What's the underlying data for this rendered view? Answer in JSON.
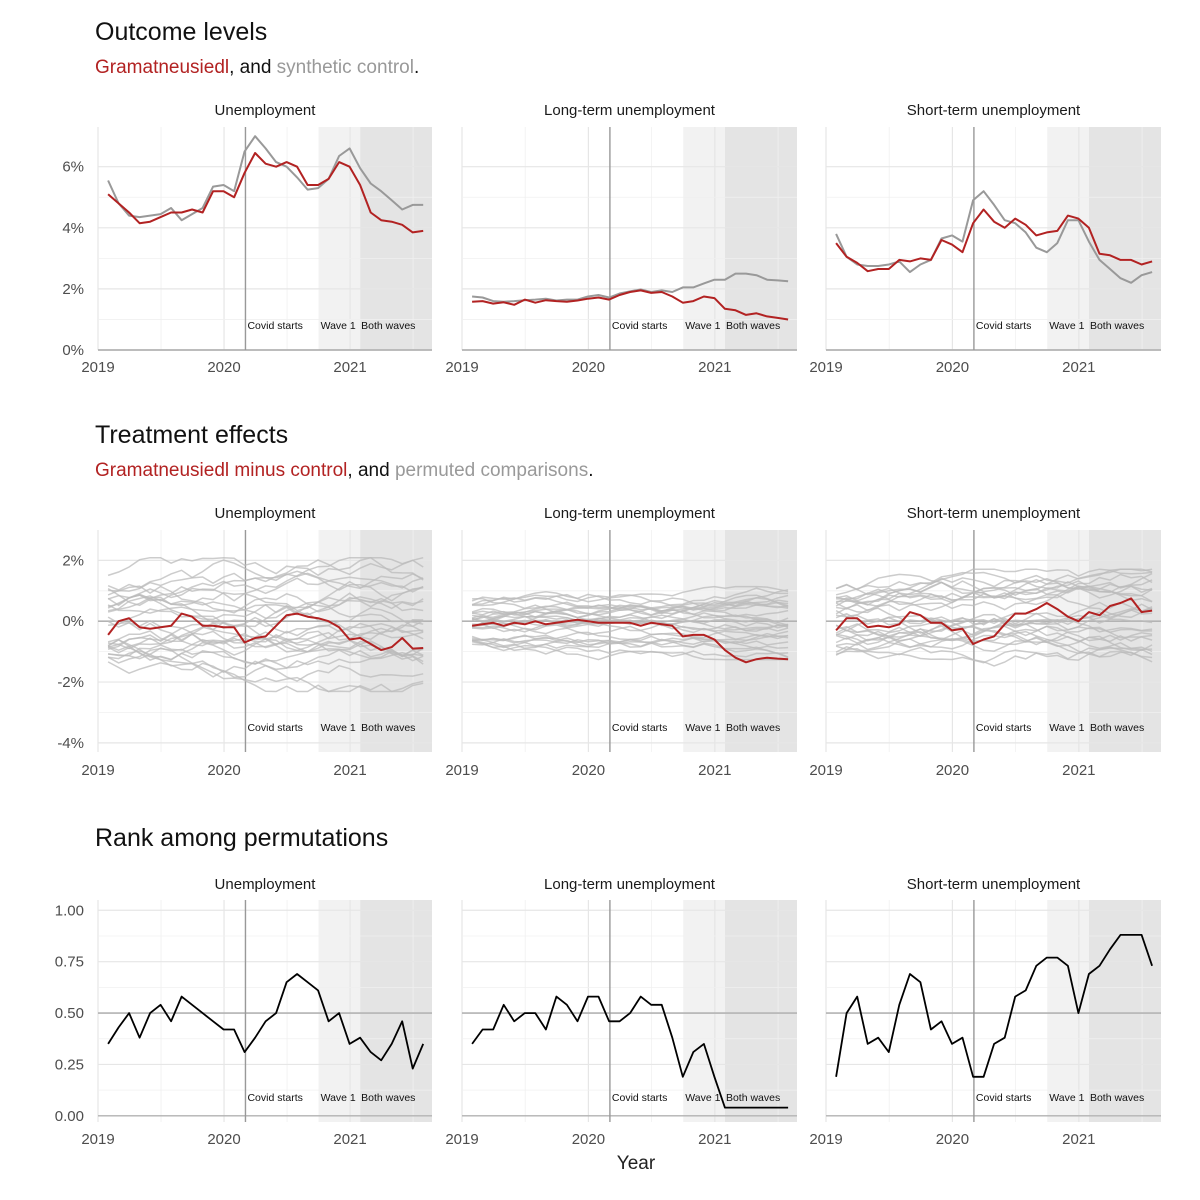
{
  "sections": [
    {
      "title": "Outcome levels",
      "subtitle": {
        "a": "Gramatneusiedl",
        "b": ", and ",
        "c": "synthetic control",
        "d": "."
      }
    },
    {
      "title": "Treatment effects",
      "subtitle": {
        "a": "Gramatneusiedl minus control",
        "b": ", and ",
        "c": "permuted comparisons",
        "d": "."
      }
    },
    {
      "title": "Rank among permutations"
    }
  ],
  "facets": [
    "Unemployment",
    "Long-term unemployment",
    "Short-term unemployment"
  ],
  "annotations": {
    "covid": "Covid starts",
    "wave1": "Wave 1",
    "both": "Both waves"
  },
  "colors": {
    "treated": "#b22222",
    "control": "#999999",
    "permuted": "#bbbbbb",
    "rank": "#000000",
    "wave1_band": "#f2f2f2",
    "both_band": "#e4e4e4"
  },
  "chart_data": [
    {
      "type": "line",
      "title": "Outcome levels",
      "xlabel": "Year",
      "x_ticks": [
        "2019",
        "2020",
        "2021"
      ],
      "y_ticks": [
        "0%",
        "2%",
        "4%",
        "6%"
      ],
      "ylim": [
        0,
        0.073
      ],
      "xlim": [
        2019.0,
        2021.65
      ],
      "covid_start": 2020.17,
      "wave1_start": 2020.75,
      "both_start": 2021.08,
      "x_start": 2019.08,
      "x_step": 0.08333,
      "panels": [
        {
          "facet": "Unemployment",
          "series": [
            {
              "name": "Gramatneusiedl",
              "role": "treated",
              "values": [
                0.051,
                0.048,
                0.045,
                0.0415,
                0.042,
                0.0435,
                0.045,
                0.045,
                0.046,
                0.045,
                0.052,
                0.052,
                0.05,
                0.058,
                0.0645,
                0.061,
                0.06,
                0.0615,
                0.06,
                0.054,
                0.054,
                0.056,
                0.0615,
                0.06,
                0.054,
                0.045,
                0.0425,
                0.042,
                0.041,
                0.0385,
                0.039
              ]
            },
            {
              "name": "synthetic control",
              "role": "control",
              "values": [
                0.0555,
                0.048,
                0.044,
                0.0435,
                0.044,
                0.0445,
                0.0465,
                0.0425,
                0.0445,
                0.0465,
                0.0535,
                0.054,
                0.052,
                0.065,
                0.07,
                0.066,
                0.0615,
                0.06,
                0.0565,
                0.0525,
                0.053,
                0.056,
                0.0635,
                0.066,
                0.0595,
                0.0545,
                0.052,
                0.049,
                0.046,
                0.0475,
                0.0475
              ]
            }
          ]
        },
        {
          "facet": "Long-term unemployment",
          "series": [
            {
              "name": "Gramatneusiedl",
              "role": "treated",
              "values": [
                0.0158,
                0.016,
                0.0152,
                0.0156,
                0.0148,
                0.0165,
                0.0155,
                0.0163,
                0.016,
                0.0158,
                0.0162,
                0.0168,
                0.0172,
                0.0165,
                0.018,
                0.019,
                0.0195,
                0.0187,
                0.019,
                0.0175,
                0.0155,
                0.016,
                0.0175,
                0.017,
                0.0135,
                0.013,
                0.0115,
                0.012,
                0.011,
                0.0105,
                0.01
              ]
            },
            {
              "name": "synthetic control",
              "role": "control",
              "values": [
                0.0175,
                0.0172,
                0.016,
                0.0158,
                0.016,
                0.0163,
                0.0165,
                0.0168,
                0.0162,
                0.0165,
                0.0165,
                0.0175,
                0.018,
                0.0172,
                0.0185,
                0.0192,
                0.0198,
                0.019,
                0.0195,
                0.019,
                0.0205,
                0.0205,
                0.0218,
                0.023,
                0.023,
                0.025,
                0.025,
                0.0245,
                0.023,
                0.0228,
                0.0225
              ]
            }
          ]
        },
        {
          "facet": "Short-term unemployment",
          "series": [
            {
              "name": "Gramatneusiedl",
              "role": "treated",
              "values": [
                0.035,
                0.0305,
                0.0285,
                0.0258,
                0.0265,
                0.0265,
                0.0295,
                0.029,
                0.03,
                0.0295,
                0.036,
                0.0345,
                0.032,
                0.0415,
                0.046,
                0.042,
                0.04,
                0.043,
                0.041,
                0.0375,
                0.0385,
                0.039,
                0.044,
                0.043,
                0.04,
                0.0315,
                0.031,
                0.0295,
                0.0295,
                0.028,
                0.029
              ]
            },
            {
              "name": "synthetic control",
              "role": "control",
              "values": [
                0.038,
                0.0305,
                0.028,
                0.0275,
                0.0275,
                0.028,
                0.029,
                0.0255,
                0.028,
                0.0295,
                0.0365,
                0.0375,
                0.0355,
                0.049,
                0.052,
                0.0475,
                0.0425,
                0.0415,
                0.0385,
                0.0335,
                0.032,
                0.035,
                0.0425,
                0.0425,
                0.0355,
                0.0295,
                0.0265,
                0.0235,
                0.022,
                0.0245,
                0.0255
              ]
            }
          ]
        }
      ]
    },
    {
      "type": "line",
      "title": "Treatment effects",
      "xlabel": "Year",
      "x_ticks": [
        "2019",
        "2020",
        "2021"
      ],
      "y_ticks": [
        "-4%",
        "-2%",
        "0%",
        "2%"
      ],
      "ylim": [
        -0.043,
        0.03
      ],
      "xlim": [
        2019.0,
        2021.65
      ],
      "covid_start": 2020.17,
      "wave1_start": 2020.75,
      "both_start": 2021.08,
      "x_start": 2019.08,
      "x_step": 0.08333,
      "panels": [
        {
          "facet": "Unemployment",
          "series": [
            {
              "name": "Gramatneusiedl minus control",
              "role": "treated",
              "values": [
                -0.0045,
                0.0,
                0.001,
                -0.002,
                -0.0025,
                -0.002,
                -0.0015,
                0.0025,
                0.0015,
                -0.0015,
                -0.0015,
                -0.002,
                -0.002,
                -0.007,
                -0.0055,
                -0.005,
                -0.0015,
                0.002,
                0.0025,
                0.0015,
                0.001,
                0.0,
                -0.002,
                -0.006,
                -0.0055,
                -0.0075,
                -0.0095,
                -0.0085,
                -0.0055,
                -0.009,
                -0.0088
              ]
            }
          ],
          "permutations": {
            "count": 28,
            "spread": 0.011,
            "note": "grey permuted comparison lines spanning roughly -4% to +2.5%"
          }
        },
        {
          "facet": "Long-term unemployment",
          "series": [
            {
              "name": "Gramatneusiedl minus control",
              "role": "treated",
              "values": [
                -0.0015,
                -0.001,
                -0.0005,
                -0.0015,
                -0.0005,
                -0.001,
                0.0,
                -0.001,
                -0.0005,
                0.0,
                0.0005,
                0.0,
                -0.0005,
                -0.0005,
                -0.0005,
                -0.0005,
                -0.0015,
                -0.0005,
                -0.001,
                -0.0015,
                -0.005,
                -0.0045,
                -0.0045,
                -0.006,
                -0.0095,
                -0.012,
                -0.0135,
                -0.0125,
                -0.012,
                -0.0123,
                -0.0125
              ]
            }
          ],
          "permutations": {
            "count": 28,
            "spread": 0.006,
            "note": "grey permuted comparison lines spanning roughly -1.5% to +1%"
          }
        },
        {
          "facet": "Short-term unemployment",
          "series": [
            {
              "name": "Gramatneusiedl minus control",
              "role": "treated",
              "values": [
                -0.003,
                0.001,
                0.001,
                -0.002,
                -0.0015,
                -0.002,
                -0.001,
                0.003,
                0.002,
                -0.0005,
                -0.0005,
                -0.003,
                -0.0025,
                -0.0075,
                -0.006,
                -0.005,
                -0.001,
                0.0025,
                0.0025,
                0.004,
                0.006,
                0.004,
                0.0015,
                0.0,
                0.003,
                0.002,
                0.005,
                0.006,
                0.0075,
                0.003,
                0.0035
              ]
            }
          ],
          "permutations": {
            "count": 28,
            "spread": 0.009,
            "note": "grey permuted comparison lines spanning roughly -2.5% to +2%"
          }
        }
      ]
    },
    {
      "type": "line",
      "title": "Rank among permutations",
      "xlabel": "Year",
      "x_ticks": [
        "2019",
        "2020",
        "2021"
      ],
      "y_ticks": [
        "0.00",
        "0.25",
        "0.50",
        "0.75",
        "1.00"
      ],
      "ylim": [
        -0.03,
        1.05
      ],
      "xlim": [
        2019.0,
        2021.65
      ],
      "covid_start": 2020.17,
      "wave1_start": 2020.75,
      "both_start": 2021.08,
      "x_start": 2019.08,
      "x_step": 0.08333,
      "panels": [
        {
          "facet": "Unemployment",
          "series": [
            {
              "name": "rank",
              "role": "rank",
              "values": [
                0.35,
                0.43,
                0.5,
                0.38,
                0.5,
                0.54,
                0.46,
                0.58,
                0.54,
                0.5,
                0.46,
                0.42,
                0.42,
                0.31,
                0.38,
                0.46,
                0.5,
                0.65,
                0.69,
                0.65,
                0.61,
                0.46,
                0.5,
                0.35,
                0.38,
                0.31,
                0.27,
                0.35,
                0.46,
                0.23,
                0.35
              ]
            }
          ]
        },
        {
          "facet": "Long-term unemployment",
          "series": [
            {
              "name": "rank",
              "role": "rank",
              "values": [
                0.35,
                0.42,
                0.42,
                0.54,
                0.46,
                0.5,
                0.5,
                0.42,
                0.58,
                0.54,
                0.46,
                0.58,
                0.58,
                0.46,
                0.46,
                0.5,
                0.58,
                0.54,
                0.54,
                0.38,
                0.19,
                0.31,
                0.35,
                0.19,
                0.04,
                0.04,
                0.04,
                0.04,
                0.04,
                0.04,
                0.04
              ]
            }
          ]
        },
        {
          "facet": "Short-term unemployment",
          "series": [
            {
              "name": "rank",
              "role": "rank",
              "values": [
                0.19,
                0.5,
                0.58,
                0.35,
                0.38,
                0.31,
                0.54,
                0.69,
                0.65,
                0.42,
                0.46,
                0.35,
                0.38,
                0.19,
                0.19,
                0.35,
                0.38,
                0.58,
                0.61,
                0.73,
                0.77,
                0.77,
                0.73,
                0.5,
                0.69,
                0.73,
                0.81,
                0.88,
                0.88,
                0.88,
                0.73
              ]
            }
          ]
        }
      ]
    }
  ]
}
